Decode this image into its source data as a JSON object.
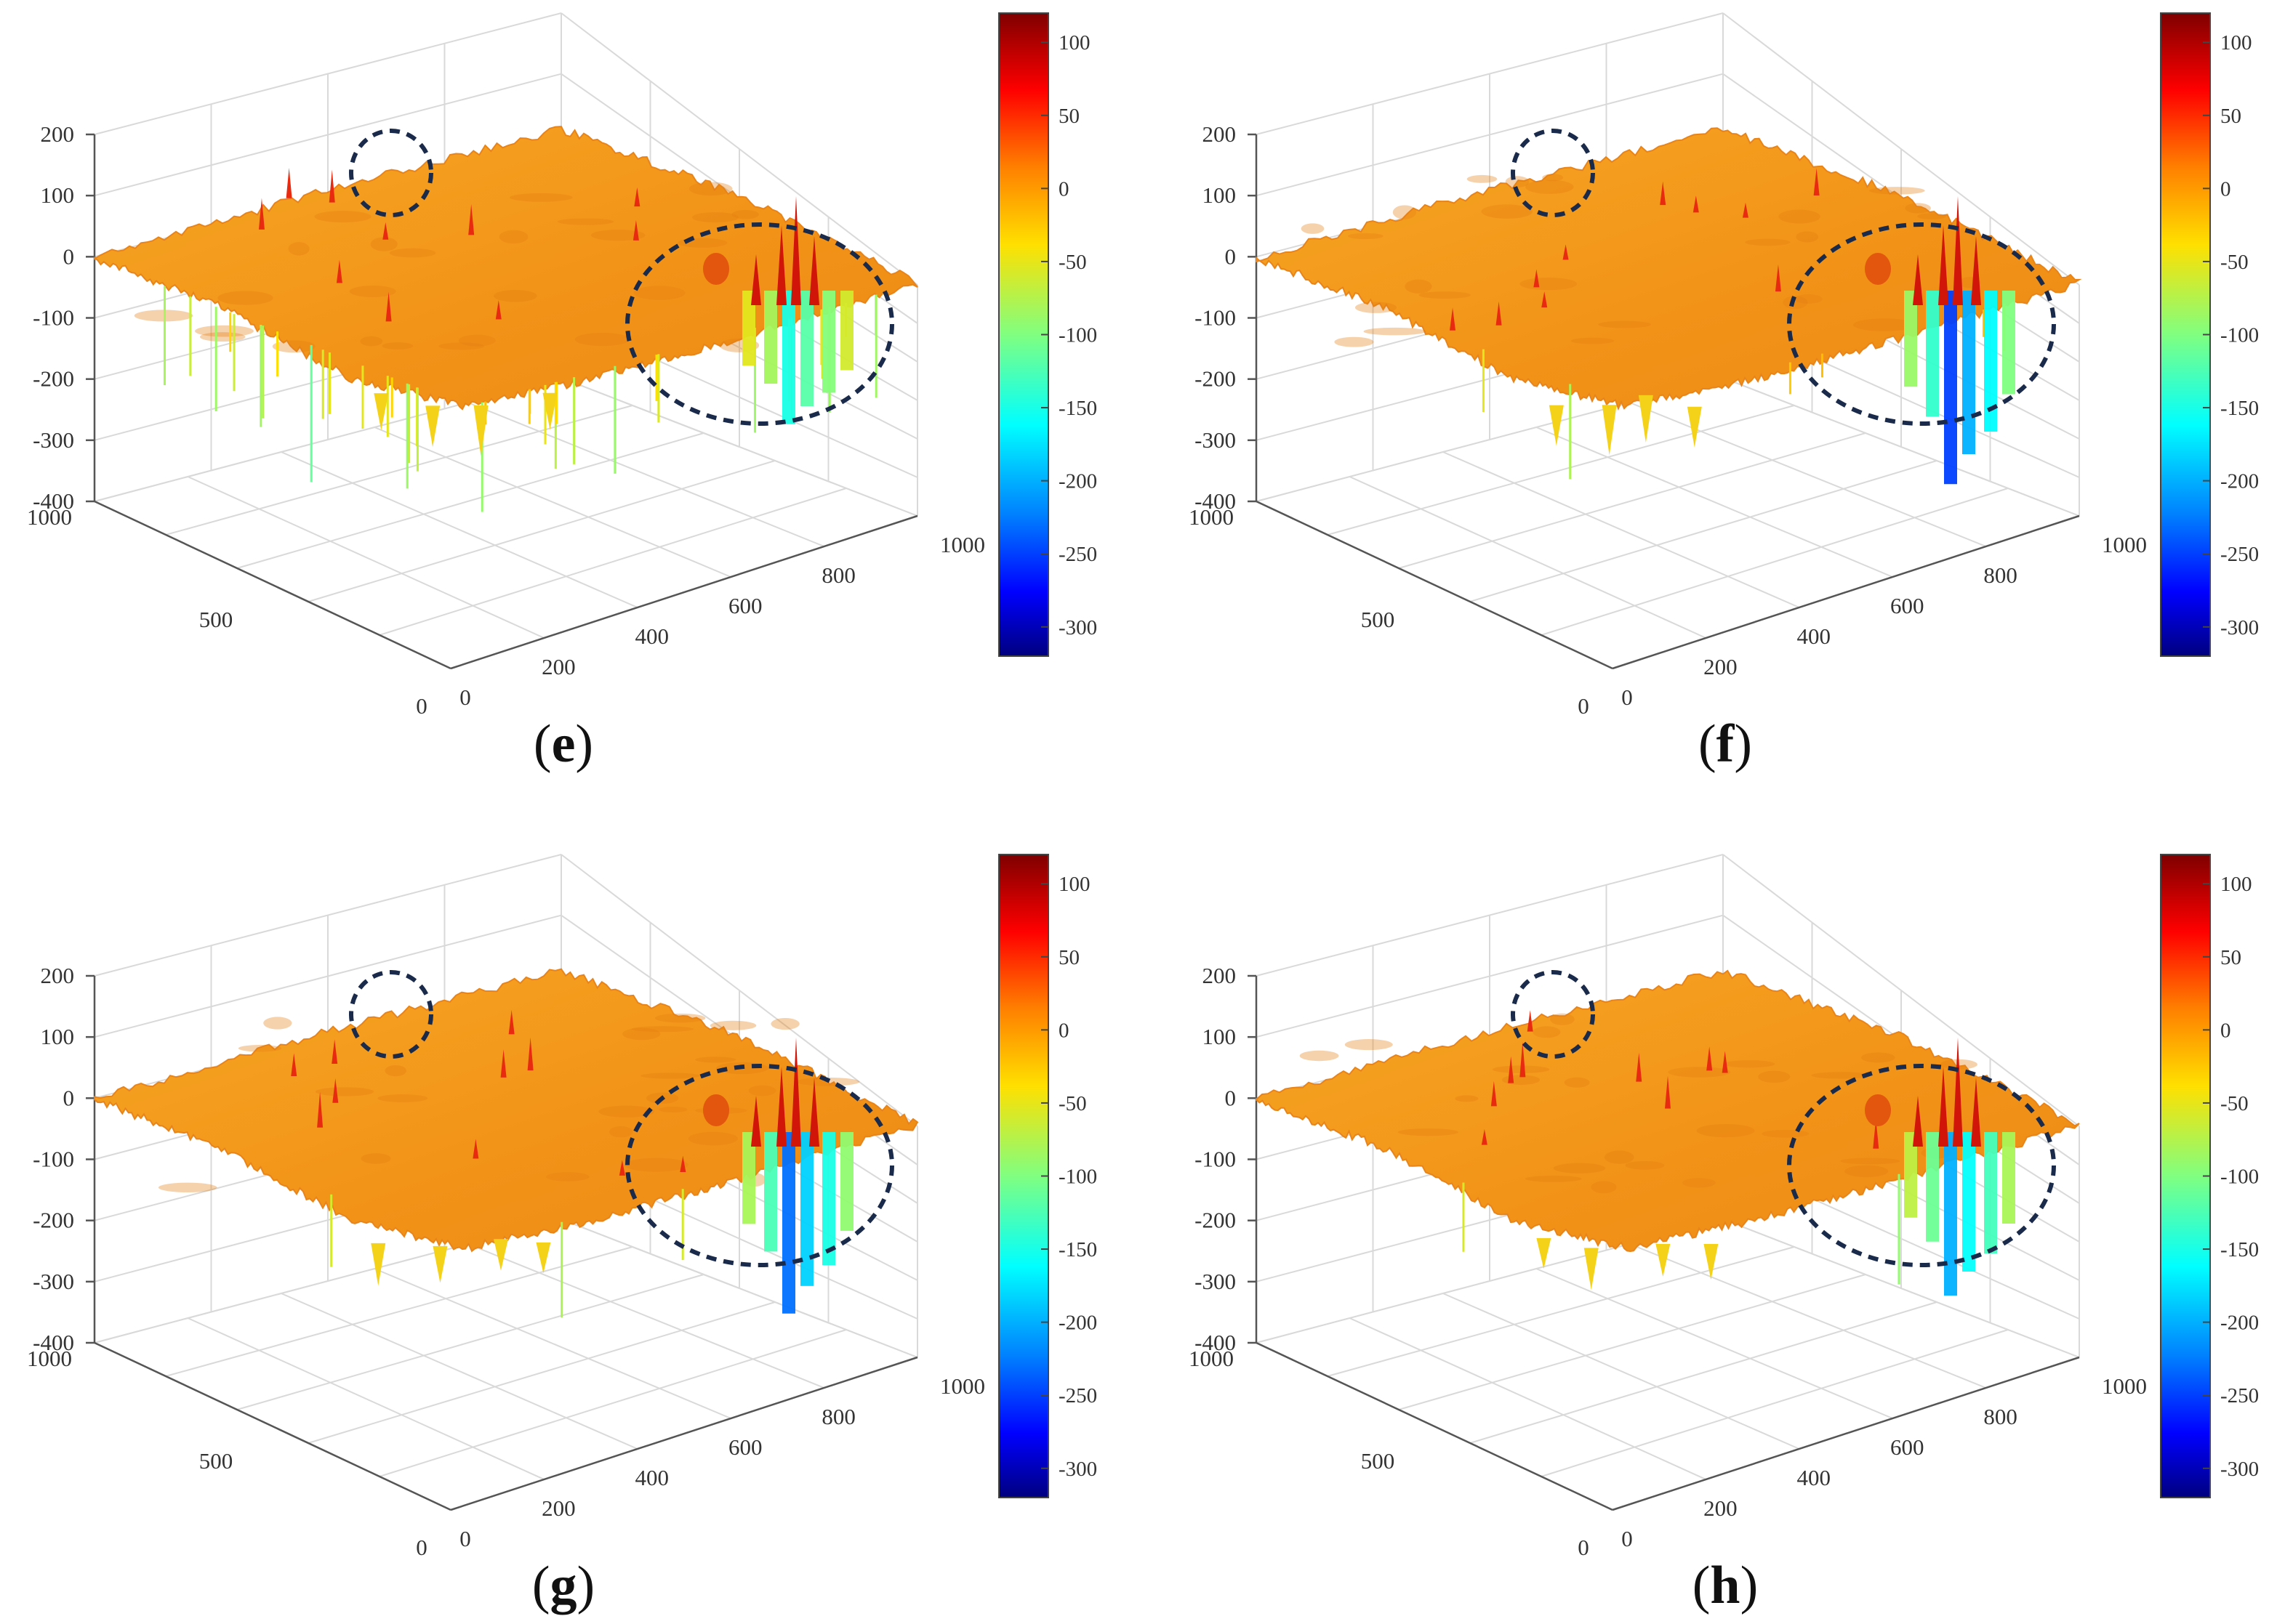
{
  "figure": {
    "description_panels": [
      "e",
      "f",
      "g",
      "h"
    ]
  },
  "colors": {
    "ellipse": "#1a2a4a",
    "grid": "#d9d9d9",
    "axis": "#555555",
    "surface_base": "#f39a1e"
  },
  "chart_data": [
    {
      "type": "surface3d",
      "panel": "e",
      "label_open": "(",
      "label_letter": "e",
      "label_close": ")",
      "z_ticks": [
        "200",
        "100",
        "0",
        "-100",
        "-200",
        "-300",
        "-400"
      ],
      "x_ticks": [
        "0",
        "200",
        "400",
        "600",
        "800",
        "1000"
      ],
      "y_ticks": [
        "1000",
        "500",
        "0"
      ],
      "colorbar_ticks": [
        "100",
        "50",
        "0",
        "-50",
        "-100",
        "-150",
        "-200",
        "-250",
        "-300"
      ],
      "zlim": [
        -400,
        200
      ],
      "clim": [
        -320,
        120
      ],
      "spike_count": 38,
      "deep_spike": -380,
      "right_anomaly_min": -150
    },
    {
      "type": "surface3d",
      "panel": "f",
      "label_open": "(",
      "label_letter": "f",
      "label_close": ")",
      "z_ticks": [
        "200",
        "100",
        "0",
        "-100",
        "-200",
        "-300",
        "-400"
      ],
      "x_ticks": [
        "0",
        "200",
        "400",
        "600",
        "800",
        "1000"
      ],
      "y_ticks": [
        "1000",
        "500",
        "0"
      ],
      "colorbar_ticks": [
        "100",
        "50",
        "0",
        "-50",
        "-100",
        "-150",
        "-200",
        "-250",
        "-300"
      ],
      "zlim": [
        -400,
        200
      ],
      "clim": [
        -320,
        120
      ],
      "spike_count": 6,
      "deep_spike": -220,
      "right_anomaly_min": -250
    },
    {
      "type": "surface3d",
      "panel": "g",
      "label_open": "(",
      "label_letter": "g",
      "label_close": ")",
      "z_ticks": [
        "200",
        "100",
        "0",
        "-100",
        "-200",
        "-300",
        "-400"
      ],
      "x_ticks": [
        "0",
        "200",
        "400",
        "600",
        "800",
        "1000"
      ],
      "y_ticks": [
        "1000",
        "500",
        "0"
      ],
      "colorbar_ticks": [
        "100",
        "50",
        "0",
        "-50",
        "-100",
        "-150",
        "-200",
        "-250",
        "-300"
      ],
      "zlim": [
        -400,
        200
      ],
      "clim": [
        -320,
        120
      ],
      "spike_count": 3,
      "deep_spike": -200,
      "right_anomaly_min": -230
    },
    {
      "type": "surface3d",
      "panel": "h",
      "label_open": "(",
      "label_letter": "h",
      "label_close": ")",
      "z_ticks": [
        "200",
        "100",
        "0",
        "-100",
        "-200",
        "-300",
        "-400"
      ],
      "x_ticks": [
        "0",
        "200",
        "400",
        "600",
        "800",
        "1000"
      ],
      "y_ticks": [
        "1000",
        "500",
        "0"
      ],
      "colorbar_ticks": [
        "100",
        "50",
        "0",
        "-50",
        "-100",
        "-150",
        "-200",
        "-250",
        "-300"
      ],
      "zlim": [
        -400,
        200
      ],
      "clim": [
        -320,
        120
      ],
      "spike_count": 2,
      "deep_spike": -180,
      "right_anomaly_min": -200
    }
  ]
}
